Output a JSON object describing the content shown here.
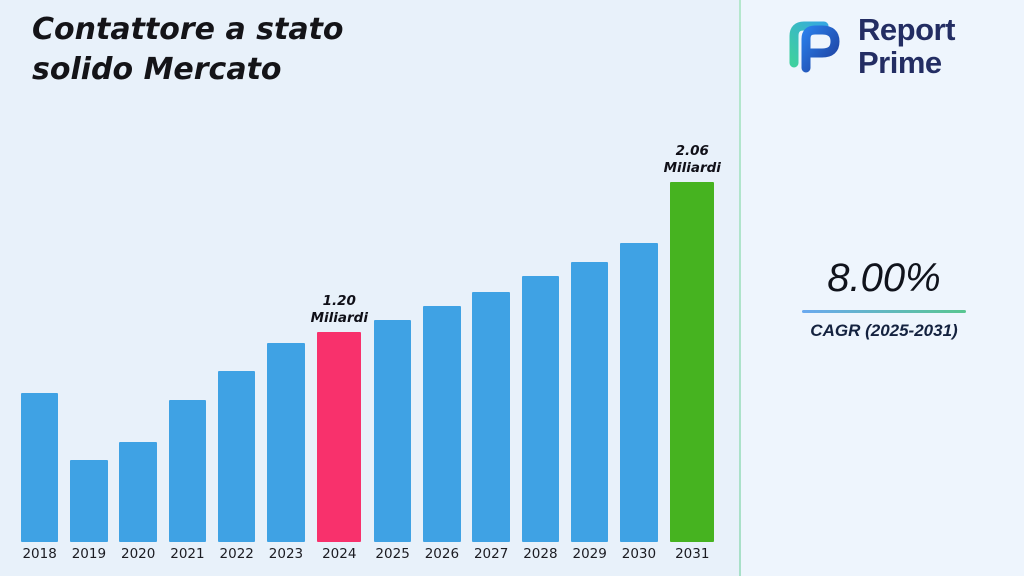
{
  "header": {
    "title_lines": [
      "Contattore a stato",
      "solido Mercato"
    ]
  },
  "brand": {
    "name_lines": [
      "Report",
      "Prime"
    ]
  },
  "stats": {
    "cagr_value": "8.00%",
    "cagr_label": "CAGR (2025-2031)"
  },
  "chart_data": {
    "type": "bar",
    "title": "Contattore a stato solido Mercato",
    "categories": [
      "2018",
      "2019",
      "2020",
      "2021",
      "2022",
      "2023",
      "2024",
      "2025",
      "2026",
      "2027",
      "2028",
      "2029",
      "2030",
      "2031"
    ],
    "values": [
      0.85,
      0.47,
      0.57,
      0.81,
      0.98,
      1.14,
      1.2,
      1.27,
      1.35,
      1.43,
      1.52,
      1.6,
      1.71,
      2.06
    ],
    "unit": "Miliardi",
    "xlabel": "",
    "ylabel": "",
    "ylim": [
      0,
      2.2
    ],
    "grid": false,
    "legend": false,
    "annotations": [
      {
        "category": "2024",
        "lines": [
          "1.20",
          "Miliardi"
        ]
      },
      {
        "category": "2031",
        "lines": [
          "2.06",
          "Miliardi"
        ]
      }
    ],
    "highlights": {
      "2024": "#f8316c",
      "2031": "#46b320"
    },
    "default_bar_color": "#3fa2e4"
  },
  "theme": {
    "background": "#e8f1fa",
    "divider": "#aee3c6",
    "brand_color": "#232d63",
    "underline_from": "#6aa9f0",
    "underline_to": "#58c690"
  }
}
